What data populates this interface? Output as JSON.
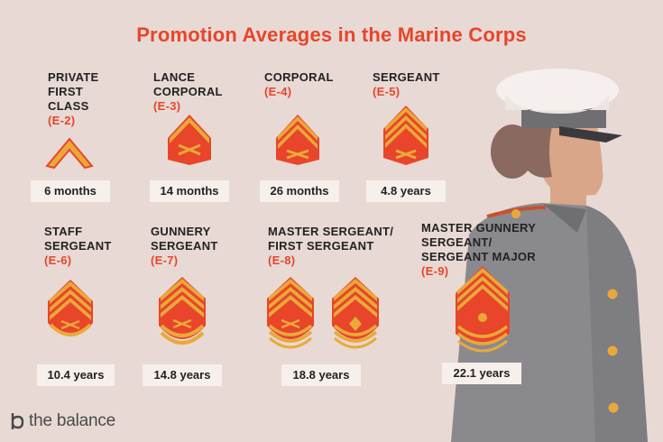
{
  "title": "Promotion Averages in the Marine Corps",
  "ranks": [
    {
      "name": "PRIVATE\nFIRST\nCLASS",
      "grade": "(E-2)",
      "time": "6 months"
    },
    {
      "name": "LANCE\nCORPORAL",
      "grade": "(E-3)",
      "time": "14 months"
    },
    {
      "name": "CORPORAL",
      "grade": "(E-4)",
      "time": "26 months"
    },
    {
      "name": "SERGEANT",
      "grade": "(E-5)",
      "time": "4.8 years"
    },
    {
      "name": "STAFF\nSERGEANT",
      "grade": "(E-6)",
      "time": "10.4 years"
    },
    {
      "name": "GUNNERY\nSERGEANT",
      "grade": "(E-7)",
      "time": "14.8 years"
    },
    {
      "name": "MASTER SERGEANT/\nFIRST SERGEANT",
      "grade": "(E-8)",
      "time": "18.8 years"
    },
    {
      "name": "MASTER GUNNERY\nSERGEANT/\nSERGEANT MAJOR",
      "grade": "(E-9)",
      "time": "22.1 years"
    }
  ],
  "brand": {
    "name": "the balance",
    "icon": "balance-logo-icon"
  },
  "colors": {
    "accent": "#e8452a",
    "background": "#e8d9d4",
    "gold": "#e9a93a",
    "red": "#e8452a",
    "uniform": "#8a8a8e"
  }
}
